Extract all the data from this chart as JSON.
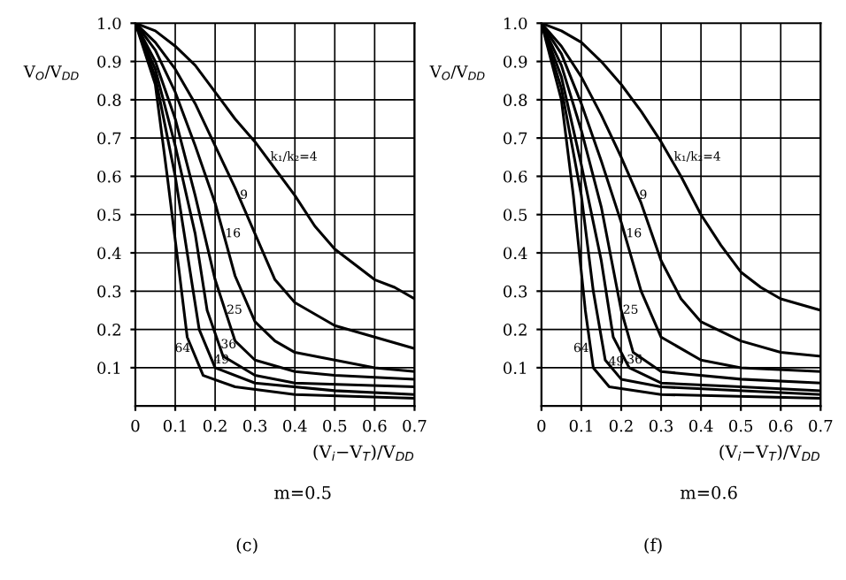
{
  "chart_data": [
    {
      "type": "line",
      "xlabel": "(V$_{i}$−V$_{T}$)/V$_{DD}$",
      "ylabel": "V$_{O}$/V$_{DD}$",
      "annotations": [
        "m=0.5",
        "(c)"
      ],
      "xlim": [
        0,
        0.7
      ],
      "ylim": [
        0,
        1
      ],
      "xticks": [
        0,
        0.1,
        0.2,
        0.3,
        0.4,
        0.5,
        0.6,
        0.7
      ],
      "yticks": [
        0.1,
        0.2,
        0.3,
        0.4,
        0.5,
        0.6,
        0.7,
        0.8,
        0.9,
        {
          "value": 1,
          "label": "1.0"
        }
      ],
      "grid": true,
      "series": [
        {
          "name": "k₁/k₂=4",
          "color": "#000000",
          "x": [
            0,
            0.05,
            0.1,
            0.15,
            0.2,
            0.25,
            0.3,
            0.35,
            0.4,
            0.45,
            0.5,
            0.55,
            0.6,
            0.65,
            0.7
          ],
          "values": [
            1,
            0.98,
            0.94,
            0.89,
            0.82,
            0.75,
            0.69,
            0.62,
            0.55,
            0.47,
            0.41,
            0.37,
            0.33,
            0.31,
            0.28
          ]
        },
        {
          "name": "9",
          "color": "#000000",
          "x": [
            0,
            0.05,
            0.1,
            0.15,
            0.2,
            0.25,
            0.3,
            0.35,
            0.4,
            0.45,
            0.5,
            0.6,
            0.7
          ],
          "values": [
            1,
            0.95,
            0.88,
            0.79,
            0.68,
            0.57,
            0.45,
            0.33,
            0.27,
            0.24,
            0.21,
            0.18,
            0.15
          ]
        },
        {
          "name": "16",
          "color": "#000000",
          "x": [
            0,
            0.05,
            0.1,
            0.15,
            0.2,
            0.25,
            0.3,
            0.35,
            0.4,
            0.5,
            0.6,
            0.7
          ],
          "values": [
            1,
            0.93,
            0.82,
            0.68,
            0.53,
            0.34,
            0.22,
            0.17,
            0.14,
            0.12,
            0.1,
            0.09
          ]
        },
        {
          "name": "25",
          "color": "#000000",
          "x": [
            0,
            0.05,
            0.1,
            0.15,
            0.2,
            0.25,
            0.3,
            0.4,
            0.5,
            0.7
          ],
          "values": [
            1,
            0.9,
            0.75,
            0.55,
            0.33,
            0.17,
            0.12,
            0.09,
            0.08,
            0.07
          ]
        },
        {
          "name": "36",
          "color": "#000000",
          "x": [
            0,
            0.05,
            0.1,
            0.15,
            0.18,
            0.22,
            0.3,
            0.4,
            0.7
          ],
          "values": [
            1,
            0.88,
            0.68,
            0.45,
            0.25,
            0.13,
            0.08,
            0.06,
            0.05
          ]
        },
        {
          "name": "49",
          "color": "#000000",
          "x": [
            0,
            0.05,
            0.1,
            0.13,
            0.16,
            0.2,
            0.3,
            0.5,
            0.7
          ],
          "values": [
            1,
            0.86,
            0.6,
            0.4,
            0.2,
            0.1,
            0.06,
            0.04,
            0.03
          ]
        },
        {
          "name": "64",
          "color": "#000000",
          "x": [
            0,
            0.05,
            0.08,
            0.11,
            0.13,
            0.17,
            0.25,
            0.4,
            0.7
          ],
          "values": [
            1,
            0.84,
            0.6,
            0.35,
            0.18,
            0.08,
            0.05,
            0.03,
            0.02
          ]
        }
      ]
    },
    {
      "type": "line",
      "xlabel": "(V$_{i}$−V$_{T}$)/V$_{DD}$",
      "ylabel": "V$_{O}$/V$_{DD}$",
      "annotations": [
        "m=0.6",
        "(f)"
      ],
      "xlim": [
        0,
        0.7
      ],
      "ylim": [
        0,
        1
      ],
      "xticks": [
        0,
        0.1,
        0.2,
        0.3,
        0.4,
        0.5,
        0.6,
        0.7
      ],
      "yticks": [
        0.1,
        0.2,
        0.3,
        0.4,
        0.5,
        0.6,
        0.7,
        0.8,
        0.9,
        {
          "value": 1,
          "label": "1.0"
        }
      ],
      "grid": true,
      "series": [
        {
          "name": "k₁/k₂=4",
          "color": "#000000",
          "x": [
            0,
            0.05,
            0.1,
            0.15,
            0.2,
            0.25,
            0.3,
            0.35,
            0.4,
            0.45,
            0.5,
            0.55,
            0.6,
            0.7
          ],
          "values": [
            1,
            0.98,
            0.95,
            0.9,
            0.84,
            0.77,
            0.69,
            0.6,
            0.5,
            0.42,
            0.35,
            0.31,
            0.28,
            0.25
          ]
        },
        {
          "name": "9",
          "color": "#000000",
          "x": [
            0,
            0.05,
            0.1,
            0.15,
            0.2,
            0.25,
            0.3,
            0.35,
            0.4,
            0.5,
            0.6,
            0.7
          ],
          "values": [
            1,
            0.94,
            0.86,
            0.76,
            0.65,
            0.53,
            0.38,
            0.28,
            0.22,
            0.17,
            0.14,
            0.13
          ]
        },
        {
          "name": "16",
          "color": "#000000",
          "x": [
            0,
            0.05,
            0.1,
            0.15,
            0.2,
            0.25,
            0.3,
            0.4,
            0.5,
            0.7
          ],
          "values": [
            1,
            0.92,
            0.79,
            0.64,
            0.48,
            0.3,
            0.18,
            0.12,
            0.1,
            0.09
          ]
        },
        {
          "name": "25",
          "color": "#000000",
          "x": [
            0,
            0.05,
            0.1,
            0.15,
            0.2,
            0.23,
            0.3,
            0.5,
            0.7
          ],
          "values": [
            1,
            0.89,
            0.72,
            0.52,
            0.25,
            0.14,
            0.09,
            0.07,
            0.06
          ]
        },
        {
          "name": "36",
          "color": "#000000",
          "x": [
            0,
            0.05,
            0.1,
            0.15,
            0.18,
            0.22,
            0.3,
            0.5,
            0.7
          ],
          "values": [
            1,
            0.86,
            0.63,
            0.38,
            0.18,
            0.1,
            0.06,
            0.05,
            0.04
          ]
        },
        {
          "name": "49",
          "color": "#000000",
          "x": [
            0,
            0.05,
            0.1,
            0.13,
            0.16,
            0.2,
            0.3,
            0.7
          ],
          "values": [
            1,
            0.83,
            0.55,
            0.3,
            0.12,
            0.07,
            0.05,
            0.03
          ]
        },
        {
          "name": "64",
          "color": "#000000",
          "x": [
            0,
            0.05,
            0.08,
            0.11,
            0.13,
            0.17,
            0.3,
            0.7
          ],
          "values": [
            1,
            0.8,
            0.55,
            0.25,
            0.1,
            0.05,
            0.03,
            0.02
          ]
        }
      ]
    }
  ]
}
